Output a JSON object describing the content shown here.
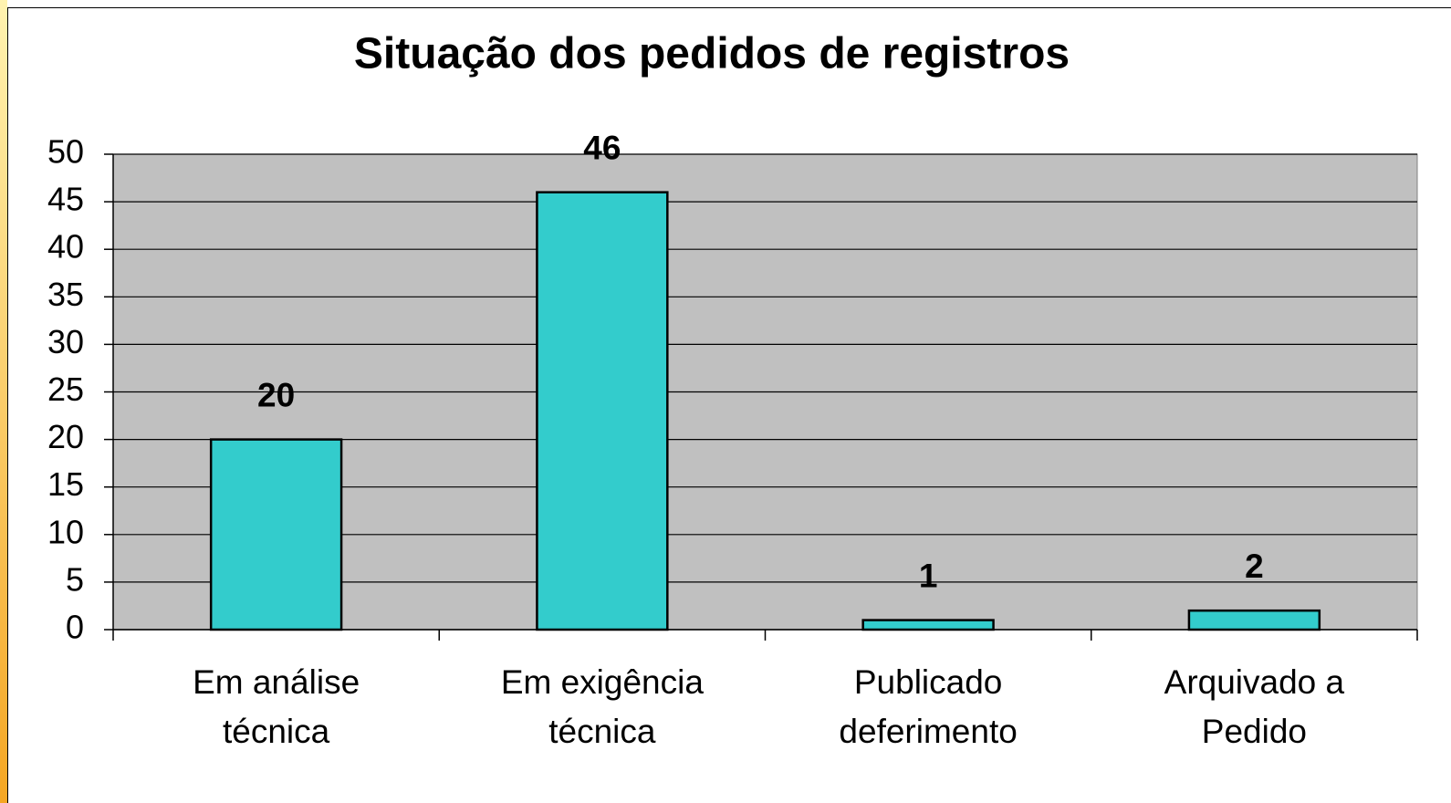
{
  "chart_data": {
    "type": "bar",
    "title": "Situação dos pedidos de registros",
    "categories": [
      "Em análise técnica",
      "Em exigência técnica",
      "Publicado deferimento",
      "Arquivado a Pedido"
    ],
    "values": [
      20,
      46,
      1,
      2
    ],
    "color": "#33cccc",
    "ylim": [
      0,
      50
    ],
    "yticks": [
      0,
      5,
      10,
      15,
      20,
      25,
      30,
      35,
      40,
      45,
      50
    ],
    "grid": true
  }
}
